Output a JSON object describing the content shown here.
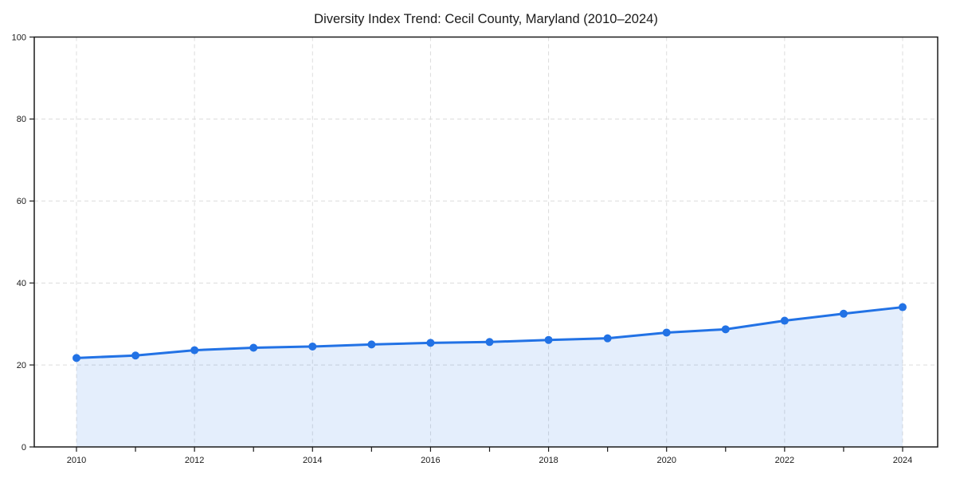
{
  "page": {
    "background": "#ffffff"
  },
  "chart_data": {
    "type": "line",
    "title": "Diversity Index Trend: Cecil County, Maryland (2010–2024)",
    "x": [
      2010,
      2011,
      2012,
      2013,
      2014,
      2015,
      2016,
      2017,
      2018,
      2019,
      2020,
      2021,
      2022,
      2023,
      2024
    ],
    "series": [
      {
        "name": "Diversity Index",
        "values": [
          21.7,
          22.3,
          23.6,
          24.2,
          24.5,
          25.0,
          25.4,
          25.6,
          26.1,
          26.5,
          27.9,
          28.7,
          30.8,
          32.5,
          34.1
        ]
      }
    ],
    "xlabel": "",
    "ylabel": "",
    "ylim": [
      0,
      100
    ],
    "yticks": [
      0,
      20,
      40,
      60,
      80,
      100
    ],
    "xtick_labels": [
      2010,
      2012,
      2014,
      2016,
      2018,
      2020,
      2022,
      2024
    ],
    "minor_xticks_every_year": true,
    "grid": "dashed",
    "legend": "none",
    "area_fill_under_line": true,
    "marker": "circle",
    "colors": {
      "line": "#2272e5",
      "marker": "#2272e5",
      "area_fill": "rgba(34,114,229,0.12)",
      "grid": "#dcdcdc",
      "axis": "#1a1a1a",
      "text": "#1a1a1a"
    }
  }
}
